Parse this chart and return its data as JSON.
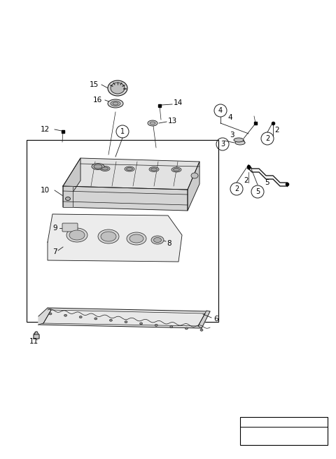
{
  "bg_color": "#ffffff",
  "line_color": "#1a1a1a",
  "fig_width": 4.8,
  "fig_height": 6.56,
  "dpi": 100
}
